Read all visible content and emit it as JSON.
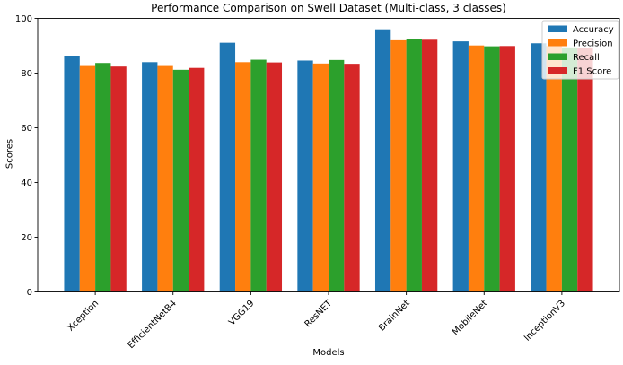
{
  "chart_data": {
    "type": "bar",
    "title": "Performance Comparison on Swell Dataset (Multi-class, 3 classes)",
    "xlabel": "Models",
    "ylabel": "Scores",
    "categories": [
      "Xception",
      "EfficientNetB4",
      "VGG19",
      "ResNET",
      "BrainNet",
      "MobileNet",
      "InceptionV3"
    ],
    "series": [
      {
        "name": "Accuracy",
        "color": "#1f77b4",
        "values": [
          86.3,
          84.0,
          91.1,
          84.6,
          96.0,
          91.6,
          90.9
        ]
      },
      {
        "name": "Precision",
        "color": "#ff7f0e",
        "values": [
          82.6,
          82.6,
          84.0,
          83.5,
          92.0,
          90.1,
          89.9
        ]
      },
      {
        "name": "Recall",
        "color": "#2ca02c",
        "values": [
          83.7,
          81.2,
          84.9,
          84.8,
          92.5,
          89.8,
          89.4
        ]
      },
      {
        "name": "F1 Score",
        "color": "#d62728",
        "values": [
          82.4,
          81.9,
          83.9,
          83.4,
          92.2,
          89.9,
          89.1
        ]
      }
    ],
    "ylim": [
      0,
      100
    ],
    "yticks": [
      0,
      20,
      40,
      60,
      80,
      100
    ],
    "grid": false,
    "legend_position": "upper right",
    "legend_bg": "rgba(255,255,255,0.8)",
    "legend_border": "#cccccc",
    "axis_color": "#000000",
    "xtick_rotation": 45,
    "bar_group_width": 0.8
  }
}
